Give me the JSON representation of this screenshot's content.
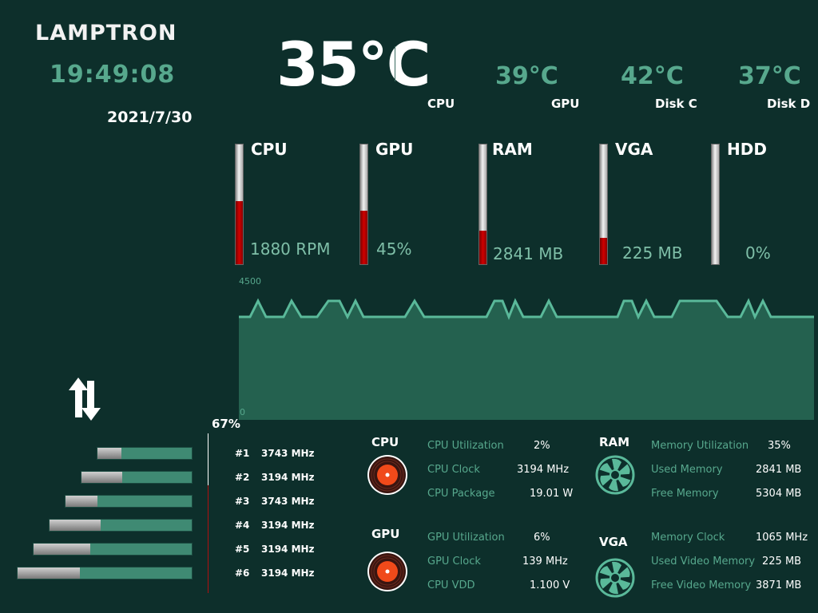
{
  "brand": "LAMPTRON",
  "clock": {
    "time": "19:49:08",
    "date": "2021/7/30"
  },
  "temps": {
    "main": {
      "value": "35°C",
      "label": "CPU"
    },
    "others": [
      {
        "value": "39°C",
        "label": "GPU"
      },
      {
        "value": "42°C",
        "label": "Disk C"
      },
      {
        "value": "37°C",
        "label": "Disk D"
      }
    ]
  },
  "gauges": [
    {
      "name": "CPU",
      "value": "1880 RPM",
      "level": 0.53
    },
    {
      "name": "GPU",
      "value": "45%",
      "level": 0.45
    },
    {
      "name": "RAM",
      "value": "2841 MB",
      "level": 0.28
    },
    {
      "name": "VGA",
      "value": "225 MB",
      "level": 0.22
    },
    {
      "name": "HDD",
      "value": "0%",
      "level": 0
    }
  ],
  "graph": {
    "ymax": "4500",
    "ymin": "0"
  },
  "usage": {
    "percent": "67%"
  },
  "cores": [
    {
      "index": "#1",
      "mhz": "3743 MHz",
      "load": 0.25
    },
    {
      "index": "#2",
      "mhz": "3194 MHz",
      "load": 0.37
    },
    {
      "index": "#3",
      "mhz": "3743 MHz",
      "load": 0.25
    },
    {
      "index": "#4",
      "mhz": "3194 MHz",
      "load": 0.36
    },
    {
      "index": "#5",
      "mhz": "3194 MHz",
      "load": 0.36
    },
    {
      "index": "#6",
      "mhz": "3194 MHz",
      "load": 0.36
    }
  ],
  "cpu": {
    "title": "CPU",
    "rows": [
      {
        "label": "CPU Utilization",
        "value": "2%"
      },
      {
        "label": "CPU Clock",
        "value": "3194 MHz"
      },
      {
        "label": "CPU Package",
        "value": "19.01 W"
      }
    ]
  },
  "gpu": {
    "title": "GPU",
    "rows": [
      {
        "label": "GPU Utilization",
        "value": "6%"
      },
      {
        "label": "GPU Clock",
        "value": "139 MHz"
      },
      {
        "label": "CPU VDD",
        "value": "1.100 V"
      }
    ]
  },
  "ram": {
    "title": "RAM",
    "rows": [
      {
        "label": "Memory Utilization",
        "value": "35%"
      },
      {
        "label": "Used Memory",
        "value": "2841 MB"
      },
      {
        "label": "Free Memory",
        "value": "5304 MB"
      }
    ]
  },
  "vga": {
    "title": "VGA",
    "rows": [
      {
        "label": "Memory Clock",
        "value": "1065 MHz"
      },
      {
        "label": "Used Video Memory",
        "value": "225 MB"
      },
      {
        "label": "Free Video Memory",
        "value": "3871 MB"
      }
    ]
  },
  "icons": {
    "disc": "vinyl-disc-icon",
    "fan": "fan-icon",
    "transfer": "up-down-arrows-icon"
  },
  "colors": {
    "background": "#0d2f2b",
    "accent": "#57a88d",
    "fill": "#24614f",
    "alert": "#d10000"
  }
}
